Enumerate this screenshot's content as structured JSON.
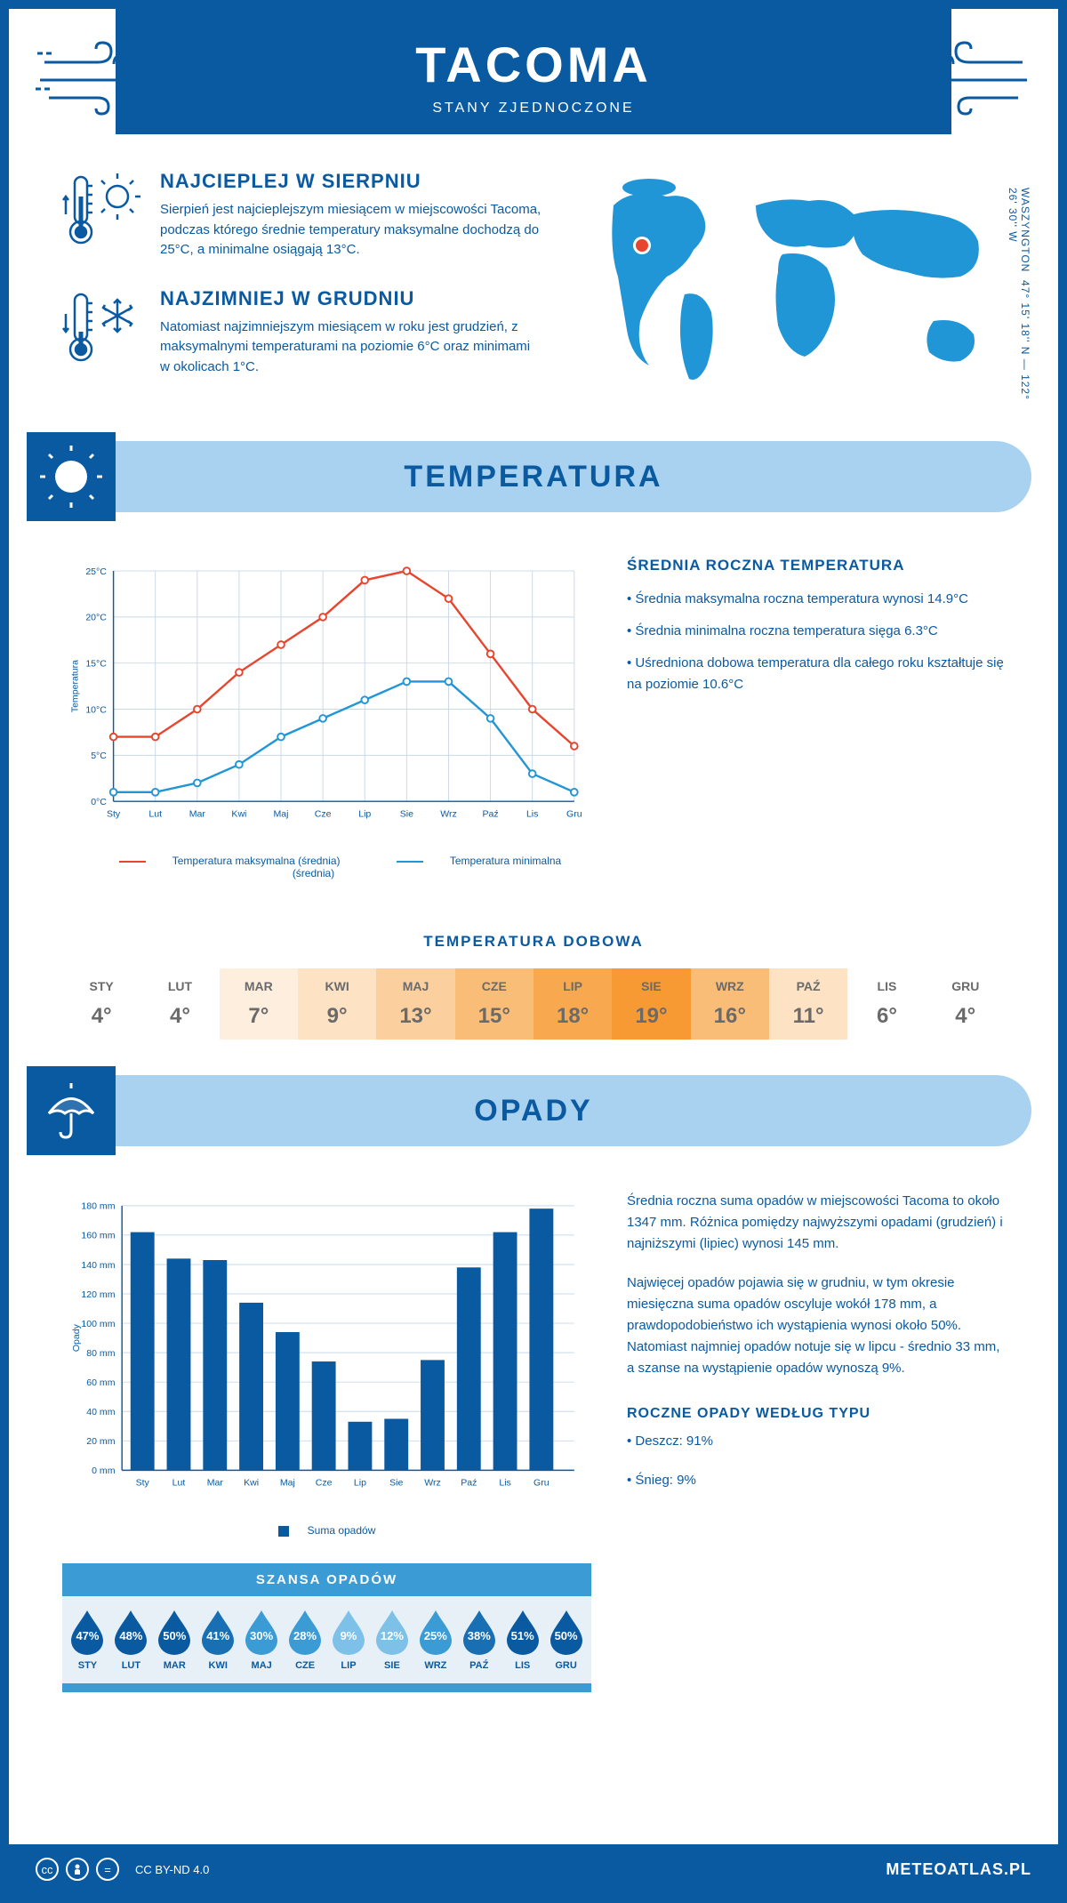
{
  "header": {
    "city": "TACOMA",
    "country": "STANY ZJEDNOCZONE"
  },
  "location": {
    "coords": "47° 15' 18'' N — 122° 26' 30'' W",
    "region": "WASZYNGTON",
    "marker_color": "#e8452f",
    "map_color": "#2196d6"
  },
  "facts": {
    "warm": {
      "title": "NAJCIEPLEJ W SIERPNIU",
      "text": "Sierpień jest najcieplejszym miesiącem w miejscowości Tacoma, podczas którego średnie temperatury maksymalne dochodzą do 25°C, a minimalne osiągają 13°C."
    },
    "cold": {
      "title": "NAJZIMNIEJ W GRUDNIU",
      "text": "Natomiast najzimniejszym miesiącem w roku jest grudzień, z maksymalnymi temperaturami na poziomie 6°C oraz minimami w okolicach 1°C."
    }
  },
  "sections": {
    "temperature": "TEMPERATURA",
    "precipitation": "OPADY"
  },
  "months": [
    "Sty",
    "Lut",
    "Mar",
    "Kwi",
    "Maj",
    "Cze",
    "Lip",
    "Sie",
    "Wrz",
    "Paź",
    "Lis",
    "Gru"
  ],
  "months_upper": [
    "STY",
    "LUT",
    "MAR",
    "KWI",
    "MAJ",
    "CZE",
    "LIP",
    "SIE",
    "WRZ",
    "PAŹ",
    "LIS",
    "GRU"
  ],
  "temp_chart": {
    "type": "line",
    "ylabel": "Temperatura",
    "ylim": [
      0,
      25
    ],
    "ytick_step": 5,
    "yticks": [
      "0°C",
      "5°C",
      "10°C",
      "15°C",
      "20°C",
      "25°C"
    ],
    "max_series": {
      "values": [
        7,
        7,
        10,
        14,
        17,
        20,
        24,
        25,
        22,
        16,
        10,
        6
      ],
      "color": "#e8452f",
      "label": "Temperatura maksymalna (średnia)"
    },
    "min_series": {
      "values": [
        1,
        1,
        2,
        4,
        7,
        9,
        11,
        13,
        13,
        9,
        3,
        1
      ],
      "color": "#2196d6",
      "label": "Temperatura minimalna (średnia)"
    },
    "grid_color": "#c9d9ea",
    "background": "#ffffff"
  },
  "temp_info": {
    "heading": "ŚREDNIA ROCZNA TEMPERATURA",
    "b1": "• Średnia maksymalna roczna temperatura wynosi 14.9°C",
    "b2": "• Średnia minimalna roczna temperatura sięga 6.3°C",
    "b3": "• Uśredniona dobowa temperatura dla całego roku kształtuje się na poziomie 10.6°C"
  },
  "daily": {
    "title": "TEMPERATURA DOBOWA",
    "values": [
      "4°",
      "4°",
      "7°",
      "9°",
      "13°",
      "15°",
      "18°",
      "19°",
      "16°",
      "11°",
      "6°",
      "4°"
    ],
    "colors": [
      "#ffffff",
      "#ffffff",
      "#fdeedd",
      "#fde2c4",
      "#fbcf9e",
      "#fabd78",
      "#f8a84e",
      "#f79a34",
      "#fabd78",
      "#fde2c4",
      "#ffffff",
      "#ffffff"
    ]
  },
  "precip_chart": {
    "type": "bar",
    "ylabel": "Opady",
    "ylim": [
      0,
      180
    ],
    "ytick_step": 20,
    "yticks": [
      "0 mm",
      "20 mm",
      "40 mm",
      "60 mm",
      "80 mm",
      "100 mm",
      "120 mm",
      "140 mm",
      "160 mm",
      "180 mm"
    ],
    "values": [
      162,
      144,
      143,
      114,
      94,
      74,
      33,
      35,
      75,
      138,
      162,
      178
    ],
    "bar_color": "#0a5aa2",
    "grid_color": "#c9d9ea",
    "legend": "Suma opadów"
  },
  "precip_info": {
    "p1": "Średnia roczna suma opadów w miejscowości Tacoma to około 1347 mm. Różnica pomiędzy najwyższymi opadami (grudzień) i najniższymi (lipiec) wynosi 145 mm.",
    "p2": "Najwięcej opadów pojawia się w grudniu, w tym okresie miesięczna suma opadów oscyluje wokół 178 mm, a prawdopodobieństwo ich wystąpienia wynosi około 50%. Natomiast najmniej opadów notuje się w lipcu - średnio 33 mm, a szanse na wystąpienie opadów wynoszą 9%.",
    "type_heading": "ROCZNE OPADY WEDŁUG TYPU",
    "rain": "• Deszcz: 91%",
    "snow": "• Śnieg: 9%"
  },
  "chance": {
    "title": "SZANSA OPADÓW",
    "values": [
      "47%",
      "48%",
      "50%",
      "41%",
      "30%",
      "28%",
      "9%",
      "12%",
      "25%",
      "38%",
      "51%",
      "50%"
    ],
    "colors": [
      "#0a5aa2",
      "#0a5aa2",
      "#0a5aa2",
      "#186fb3",
      "#3b9bd4",
      "#3b9bd4",
      "#7ec1e8",
      "#7ec1e8",
      "#3b9bd4",
      "#186fb3",
      "#0a5aa2",
      "#0a5aa2"
    ]
  },
  "footer": {
    "license": "CC BY-ND 4.0",
    "brand": "METEOATLAS.PL"
  },
  "colors": {
    "primary": "#0a5aa2",
    "light": "#a8d2f0",
    "accent": "#e8452f"
  }
}
